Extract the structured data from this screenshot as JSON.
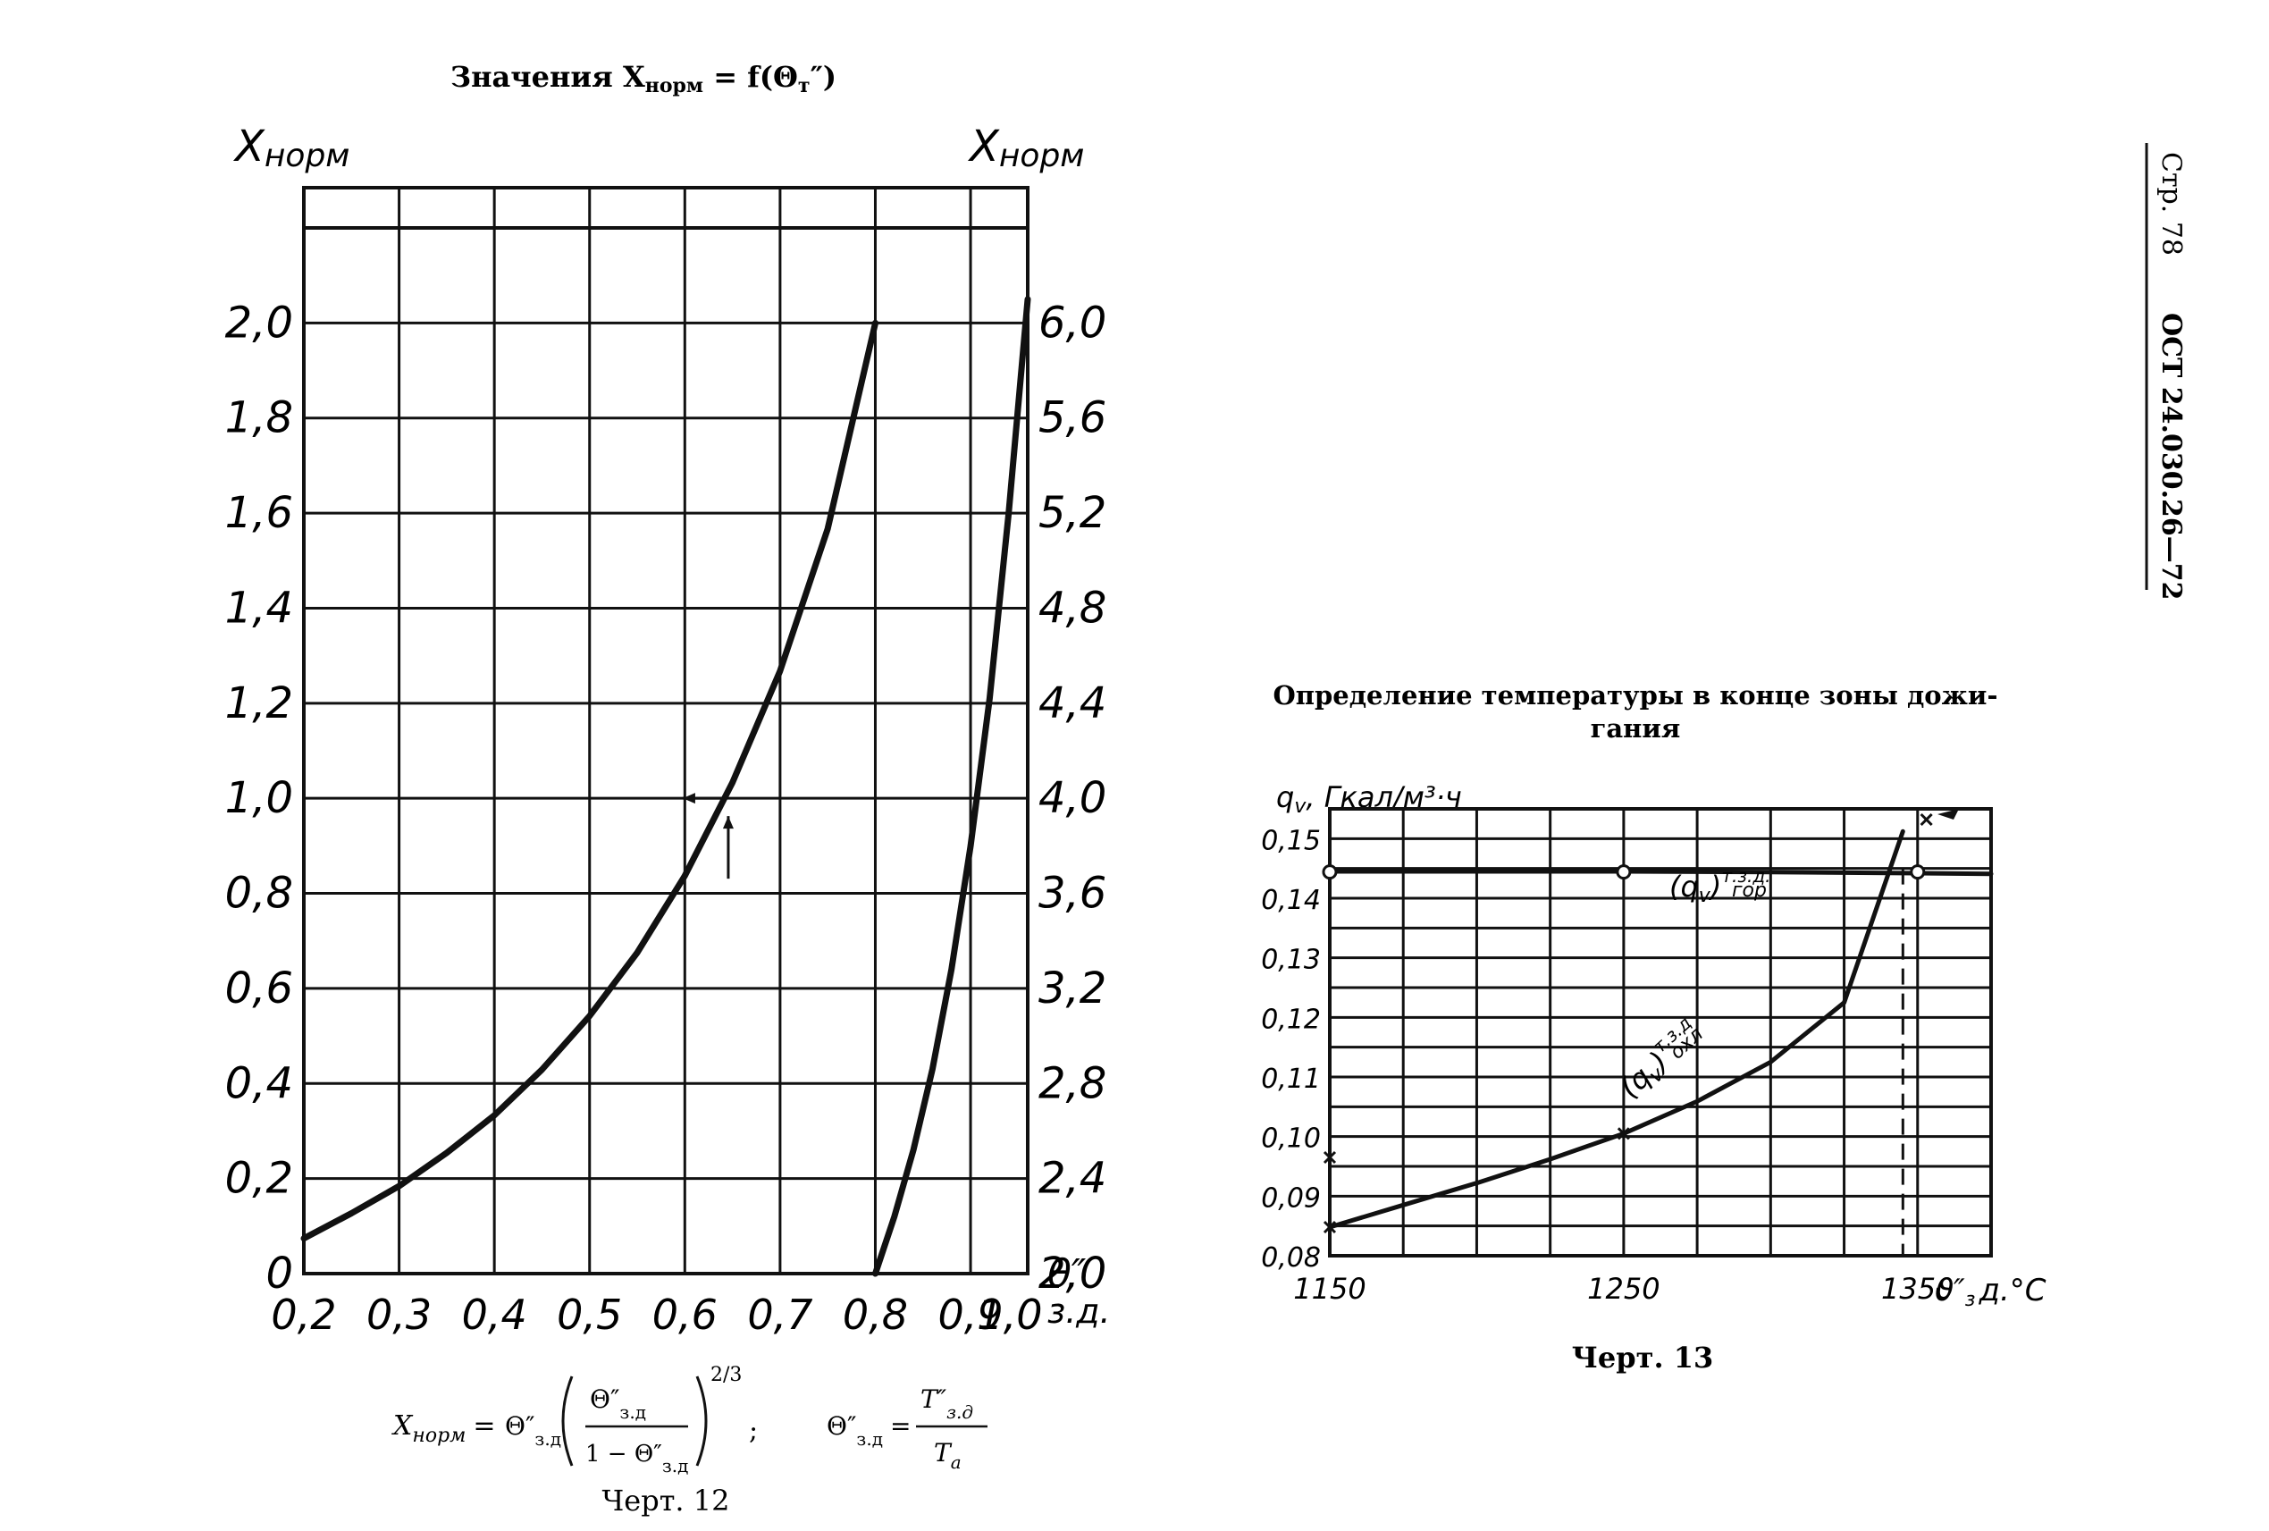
{
  "page": {
    "side_header_page": "Стр. 78",
    "side_header_code": "ОСТ 24.030.26—72"
  },
  "chart_data": [
    {
      "type": "line",
      "title": "Значения X",
      "title_sub": "норм",
      "title_tail": " = f(Θ",
      "title_tail_sub": "т",
      "title_tail_end": "″)",
      "ylabel_left_main": "X",
      "ylabel_left_sub": "норм",
      "ylabel_right_main": "X",
      "ylabel_right_sub": "норм",
      "xlabel_main": "θ″",
      "xlabel_sub": "з.д.",
      "x_ticks": [
        "0,2",
        "0,3",
        "0,4",
        "0,5",
        "0,6",
        "0,7",
        "0,8",
        "0,9",
        "1,0"
      ],
      "x_tick_values": [
        0.2,
        0.3,
        0.4,
        0.5,
        0.6,
        0.7,
        0.8,
        0.9,
        1.0
      ],
      "y_left_ticks": [
        "0",
        "0,2",
        "0,4",
        "0,6",
        "0,8",
        "1,0",
        "1,2",
        "1,4",
        "1,6",
        "1,8",
        "2,0"
      ],
      "y_left_tick_values": [
        0,
        0.2,
        0.4,
        0.6,
        0.8,
        1.0,
        1.2,
        1.4,
        1.6,
        1.8,
        2.0
      ],
      "y_right_ticks": [
        "2,0",
        "2,4",
        "2,8",
        "3,2",
        "3,6",
        "4,0",
        "4,4",
        "4,8",
        "5,2",
        "5,6",
        "6,0"
      ],
      "y_right_tick_values": [
        2.0,
        2.4,
        2.8,
        3.2,
        3.6,
        4.0,
        4.4,
        4.8,
        5.2,
        5.6,
        6.0
      ],
      "xlim": [
        0.2,
        0.96
      ],
      "ylim_left": [
        0,
        2.2
      ],
      "ylim_right": [
        2.0,
        6.4
      ],
      "grid": true,
      "series": [
        {
          "axis": "left",
          "x": [
            0.2,
            0.25,
            0.3,
            0.35,
            0.4,
            0.45,
            0.5,
            0.55,
            0.6,
            0.65,
            0.7,
            0.75,
            0.8
          ],
          "y": [
            0.074,
            0.127,
            0.184,
            0.254,
            0.333,
            0.429,
            0.542,
            0.675,
            0.837,
            1.033,
            1.268,
            1.567,
            2.0
          ]
        },
        {
          "axis": "right",
          "x": [
            0.8,
            0.82,
            0.84,
            0.86,
            0.88,
            0.9,
            0.92,
            0.94,
            0.96
          ],
          "y": [
            2.0,
            2.24,
            2.52,
            2.86,
            3.28,
            3.8,
            4.42,
            5.2,
            6.1
          ]
        }
      ],
      "formula": {
        "lhs_main": "X",
        "lhs_sub": "норм",
        "eq": "=",
        "theta": "Θ″",
        "theta_sub": "з.д",
        "one_minus": "1 − Θ″",
        "power": "2/3",
        "semicolon": ";",
        "rhs_num": "T″",
        "rhs_num_sub": "з.д",
        "rhs_den": "T",
        "rhs_den_sub": "a"
      },
      "caption": "Черт. 12"
    },
    {
      "type": "line",
      "title_line1": "Определение температуры в конце зоны дожи-",
      "title_line2": "гания",
      "ylabel": "q",
      "ylabel_sub": "v",
      "ylabel_tail": ", Гкал/м³·ч",
      "xlabel": "ϑ″",
      "xlabel_sub": "з",
      "xlabel_tail": "д.°C",
      "x_ticks": [
        "1150",
        "1250",
        "1350"
      ],
      "x_tick_values": [
        1150,
        1250,
        1350
      ],
      "y_ticks": [
        "0,08",
        "0,09",
        "0,10",
        "0,11",
        "0,12",
        "0,13",
        "0,14",
        "0,15"
      ],
      "y_tick_values": [
        0.08,
        0.09,
        0.1,
        0.11,
        0.12,
        0.13,
        0.14,
        0.15
      ],
      "xlim": [
        1150,
        1375
      ],
      "ylim": [
        0.08,
        0.155
      ],
      "grid": true,
      "series": [
        {
          "name_main": "(q",
          "name_sub": "v",
          "name_close": ")",
          "name_sup": "т.з.д.",
          "name_sub2": "гор",
          "x": [
            1150,
            1200,
            1250,
            1300,
            1350,
            1375
          ],
          "y": [
            0.1445,
            0.1445,
            0.1445,
            0.1444,
            0.1442,
            0.1441
          ]
        },
        {
          "name_main": "(q",
          "name_sub": "v",
          "name_close": ")",
          "name_sup": "т.з.д",
          "name_sub2": "охл",
          "x": [
            1150,
            1175,
            1200,
            1225,
            1250,
            1275,
            1300,
            1325,
            1345
          ],
          "y": [
            0.0848,
            0.0885,
            0.0922,
            0.0962,
            0.1005,
            0.1059,
            0.1125,
            0.1225,
            0.1512
          ]
        }
      ],
      "caption": "Черт. 13"
    }
  ]
}
